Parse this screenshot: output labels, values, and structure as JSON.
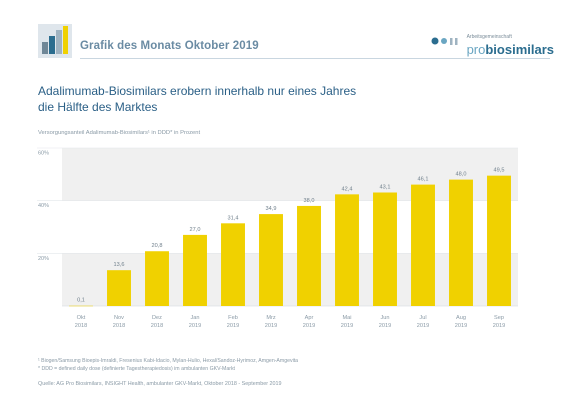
{
  "header": {
    "title": "Grafik des Monats Oktober 2019",
    "brand_small": "Arbeitsgemeinschaft",
    "brand_pro": "pro",
    "brand_bio": "biosimilars",
    "accent_color": "#2b6d8f",
    "logo_icon": "bar-building-icon"
  },
  "main": {
    "title_line1": "Adalimumab-Biosimilars erobern innerhalb nur eines Jahres",
    "title_line2": "die Hälfte des Marktes",
    "subtitle": "Versorgungsanteil Adalimumab-Biosimilars¹ in DDD* in Prozent"
  },
  "chart_data": {
    "type": "bar",
    "title": "Adalimumab-Biosimilars erobern innerhalb nur eines Jahres die Hälfte des Marktes",
    "ylabel": "Versorgungsanteil Adalimumab-Biosimilars¹ in DDD* in Prozent",
    "xlabel": "",
    "ylim": [
      0,
      60
    ],
    "yticks": [
      "20%",
      "40%",
      "60%"
    ],
    "ytick_values": [
      20,
      40,
      60
    ],
    "grid": true,
    "bar_color": "#f0d100",
    "band_color": "#f0f0f0",
    "categories": [
      [
        "Okt",
        "2018"
      ],
      [
        "Nov",
        "2018"
      ],
      [
        "Dez",
        "2018"
      ],
      [
        "Jan",
        "2019"
      ],
      [
        "Feb",
        "2019"
      ],
      [
        "Mrz",
        "2019"
      ],
      [
        "Apr",
        "2019"
      ],
      [
        "Mai",
        "2019"
      ],
      [
        "Jun",
        "2019"
      ],
      [
        "Jul",
        "2019"
      ],
      [
        "Aug",
        "2019"
      ],
      [
        "Sep",
        "2019"
      ]
    ],
    "values": [
      0.1,
      13.6,
      20.8,
      27.0,
      31.4,
      34.9,
      38.0,
      42.4,
      43.1,
      46.1,
      48.0,
      49.5
    ],
    "value_labels": [
      "0,1",
      "13,6",
      "20,8",
      "27,0",
      "31,4",
      "34,9",
      "38,0",
      "42,4",
      "43,1",
      "46,1",
      "48,0",
      "49,5"
    ]
  },
  "footer": {
    "note1": "¹ Biogen/Samsung Bioepis-Imraldi, Fresenius Kabi-Idacio, Mylan-Hulio, Hexal/Sandoz-Hyrimoz, Amgen-Amgevita",
    "note2": "* DDD = defined daily dose (definierte Tagestherapiedosis) im ambulanten GKV-Markt",
    "source": "Quelle: AG Pro Biosimilars, INSIGHT Health, ambulanter GKV-Markt, Oktober 2018 - September 2019"
  }
}
